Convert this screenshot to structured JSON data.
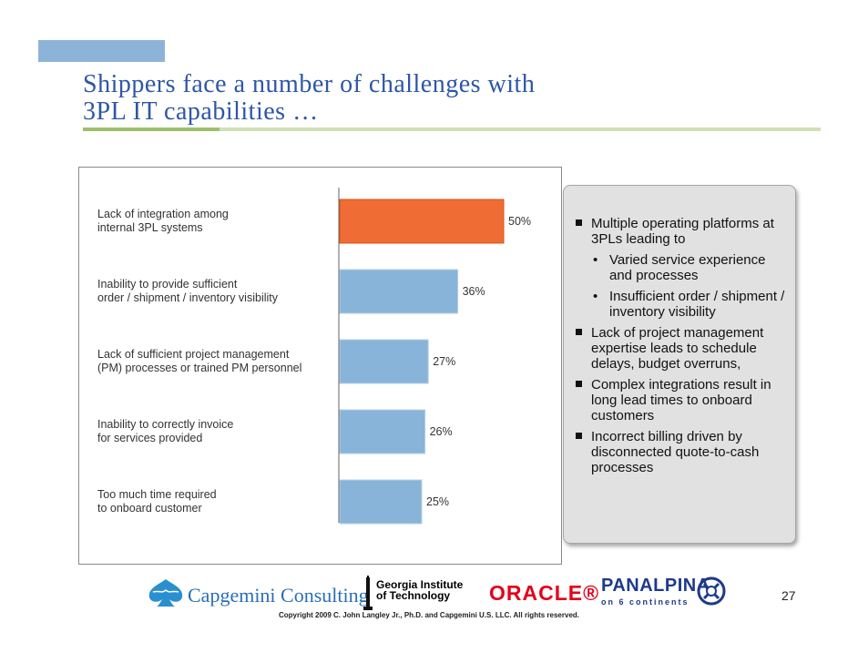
{
  "slide": {
    "title_line1": "Shippers face a number of challenges with",
    "title_line2": "3PL IT capabilities …",
    "page_number": "27",
    "copyright": "Copyright 2009 C. John Langley Jr., Ph.D. and Capgemini U.S. LLC. All rights reserved."
  },
  "chart_data": {
    "type": "bar",
    "orientation": "horizontal",
    "categories": [
      [
        "Lack of integration among",
        "internal 3PL systems"
      ],
      [
        "Inability to provide sufficient",
        "order / shipment / inventory visibility"
      ],
      [
        "Lack of sufficient project management",
        "(PM) processes or trained PM personnel"
      ],
      [
        "Inability to correctly invoice",
        "for services provided"
      ],
      [
        "Too much time required",
        "to onboard customer"
      ]
    ],
    "values": [
      50,
      36,
      27,
      26,
      25
    ],
    "value_labels": [
      "50%",
      "36%",
      "27%",
      "26%",
      "25%"
    ],
    "highlight_color": "#ef6c35",
    "bar_color": "#89b4d9",
    "bar_border": "#b7cfe4",
    "grid": false
  },
  "callout": {
    "bullets": [
      {
        "text": "Multiple operating platforms at 3PLs leading to",
        "sub": [
          "Varied service experience and processes",
          "Insufficient order / shipment / inventory visibility"
        ]
      },
      {
        "text": "Lack of project management expertise leads to schedule delays, budget overruns,",
        "sub": []
      },
      {
        "text": "Complex integrations result in long lead times to onboard customers",
        "sub": []
      },
      {
        "text": "Incorrect billing driven by disconnected quote-to-cash processes",
        "sub": []
      }
    ]
  },
  "logos": {
    "capgemini": "Capgemini Consulting",
    "georgia_tech_line1": "Georgia Institute",
    "georgia_tech_line2": "of Technology",
    "oracle": "ORACLE®",
    "panalpina": "PANALPINA",
    "panalpina_tagline": "on 6 continents"
  }
}
